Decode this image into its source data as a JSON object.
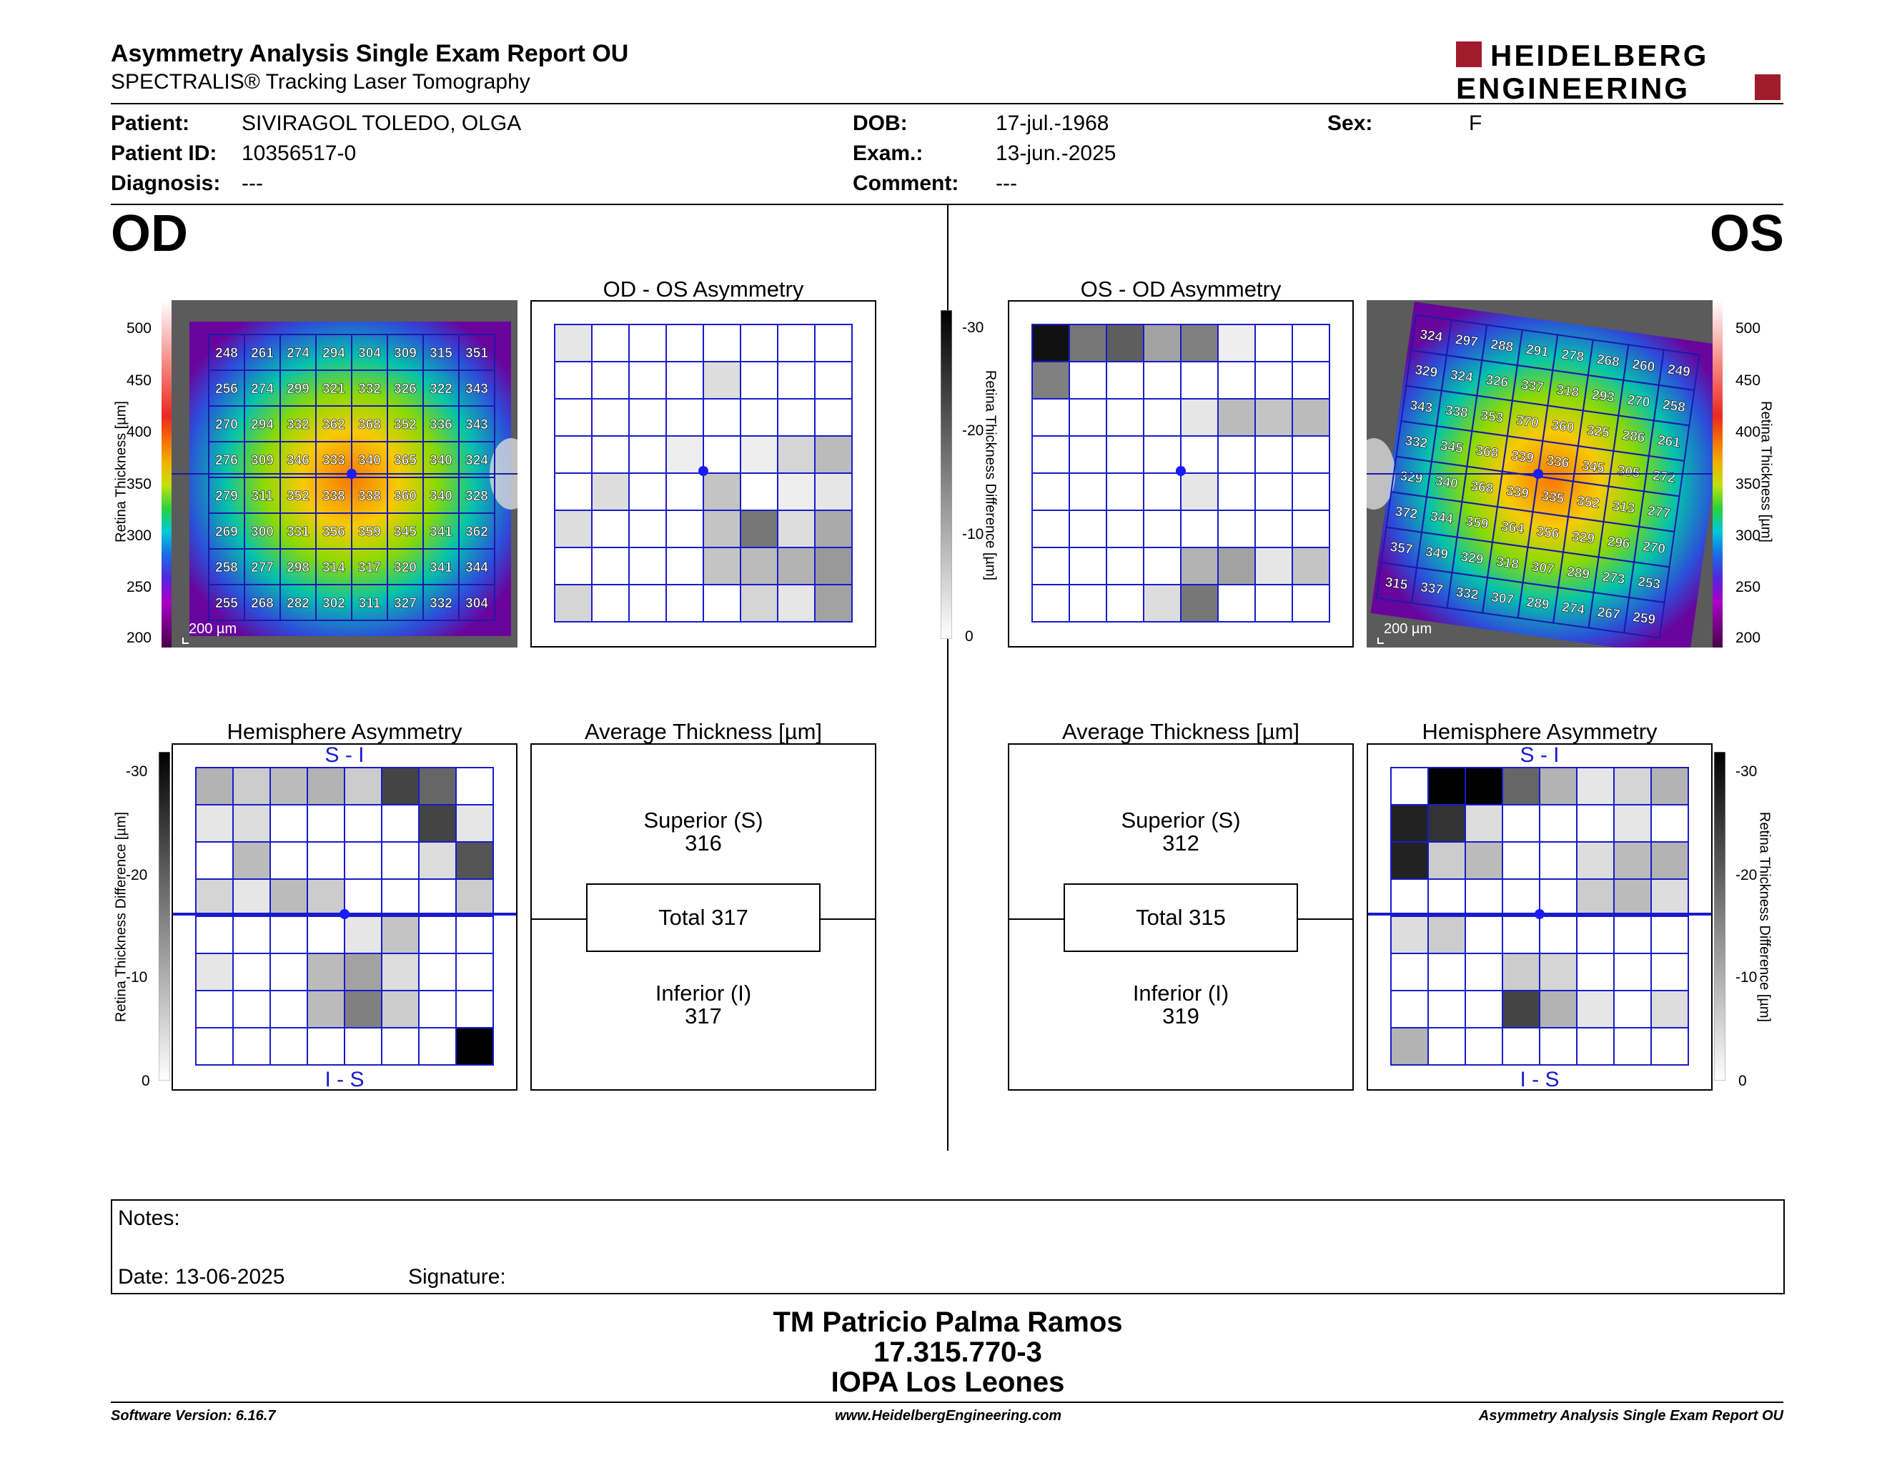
{
  "header": {
    "title": "Asymmetry Analysis Single Exam Report OU",
    "subtitle": "SPECTRALIS® Tracking Laser Tomography",
    "logo_line1": "HEIDELBERG",
    "logo_line2": "ENGINEERING"
  },
  "patient": {
    "patient_label": "Patient:",
    "patient_value": "SIVIRAGOL TOLEDO, OLGA",
    "id_label": "Patient ID:",
    "id_value": "10356517-0",
    "diagnosis_label": "Diagnosis:",
    "diagnosis_value": "---",
    "dob_label": "DOB:",
    "dob_value": "17-jul.-1968",
    "exam_label": "Exam.:",
    "exam_value": "13-jun.-2025",
    "comment_label": "Comment:",
    "comment_value": "---",
    "sex_label": "Sex:",
    "sex_value": "F"
  },
  "od": {
    "eye_label": "OD",
    "asym_title": "OD - OS Asymmetry",
    "hemi_title": "Hemisphere Asymmetry",
    "avg_title": "Average Thickness [µm]",
    "superior_label": "Superior (S)",
    "superior_value": "316",
    "total_text": "Total 317",
    "inferior_label": "Inferior (I)",
    "inferior_value": "317",
    "scale_label": "200 µm",
    "si_label": "S - I",
    "is_label": "I - S",
    "thickness_grid": [
      [
        248,
        261,
        274,
        294,
        304,
        309,
        315,
        351
      ],
      [
        256,
        274,
        299,
        321,
        332,
        326,
        322,
        343
      ],
      [
        270,
        294,
        332,
        362,
        368,
        352,
        336,
        343
      ],
      [
        276,
        309,
        346,
        333,
        340,
        365,
        340,
        324
      ],
      [
        279,
        311,
        352,
        338,
        338,
        360,
        340,
        328
      ],
      [
        269,
        300,
        331,
        356,
        359,
        345,
        341,
        362
      ],
      [
        258,
        277,
        298,
        314,
        317,
        320,
        341,
        344
      ],
      [
        255,
        268,
        282,
        302,
        311,
        327,
        332,
        304
      ]
    ],
    "asym_grid": [
      [
        3,
        0,
        0,
        0,
        0,
        0,
        0,
        0
      ],
      [
        0,
        0,
        0,
        0,
        4,
        0,
        0,
        0
      ],
      [
        0,
        0,
        0,
        0,
        0,
        0,
        0,
        0
      ],
      [
        0,
        0,
        0,
        2,
        0,
        2,
        5,
        8
      ],
      [
        0,
        4,
        0,
        0,
        7,
        0,
        2,
        3
      ],
      [
        4,
        0,
        0,
        0,
        7,
        16,
        4,
        10
      ],
      [
        0,
        0,
        0,
        0,
        7,
        8,
        9,
        12
      ],
      [
        5,
        0,
        0,
        0,
        0,
        5,
        3,
        11
      ]
    ],
    "hemi_grid": [
      [
        9,
        6,
        8,
        9,
        6,
        22,
        18,
        0
      ],
      [
        3,
        4,
        0,
        0,
        0,
        0,
        22,
        3
      ],
      [
        0,
        8,
        0,
        0,
        0,
        0,
        4,
        20
      ],
      [
        5,
        3,
        8,
        6,
        0,
        0,
        0,
        6
      ],
      [
        0,
        0,
        0,
        0,
        3,
        7,
        0,
        0
      ],
      [
        3,
        0,
        0,
        8,
        11,
        4,
        0,
        0
      ],
      [
        0,
        0,
        0,
        8,
        15,
        6,
        0,
        0
      ],
      [
        0,
        0,
        0,
        0,
        0,
        0,
        0,
        30
      ]
    ]
  },
  "os": {
    "eye_label": "OS",
    "asym_title": "OS - OD Asymmetry",
    "hemi_title": "Hemisphere Asymmetry",
    "avg_title": "Average Thickness [µm]",
    "superior_label": "Superior (S)",
    "superior_value": "312",
    "total_text": "Total 315",
    "inferior_label": "Inferior (I)",
    "inferior_value": "319",
    "scale_label": "200 µm",
    "si_label": "S - I",
    "is_label": "I - S",
    "thickness_grid": [
      [
        324,
        297,
        288,
        291,
        278,
        268,
        260,
        249
      ],
      [
        329,
        324,
        326,
        337,
        318,
        293,
        270,
        258
      ],
      [
        343,
        338,
        353,
        370,
        360,
        325,
        286,
        261
      ],
      [
        332,
        345,
        368,
        339,
        336,
        345,
        305,
        272
      ],
      [
        329,
        340,
        368,
        339,
        335,
        352,
        313,
        277
      ],
      [
        372,
        344,
        359,
        364,
        356,
        329,
        296,
        270
      ],
      [
        357,
        349,
        329,
        318,
        307,
        289,
        273,
        253
      ],
      [
        315,
        337,
        332,
        307,
        289,
        274,
        267,
        259
      ]
    ],
    "asym_grid": [
      [
        28,
        16,
        19,
        11,
        15,
        2,
        0,
        0
      ],
      [
        15,
        0,
        0,
        0,
        0,
        0,
        0,
        0
      ],
      [
        0,
        0,
        0,
        0,
        3,
        8,
        7,
        8
      ],
      [
        0,
        0,
        0,
        0,
        0,
        0,
        0,
        0
      ],
      [
        0,
        0,
        0,
        0,
        3,
        0,
        0,
        0
      ],
      [
        0,
        0,
        0,
        0,
        0,
        0,
        0,
        0
      ],
      [
        0,
        0,
        0,
        0,
        9,
        11,
        3,
        7
      ],
      [
        0,
        0,
        0,
        4,
        16,
        0,
        0,
        0
      ]
    ],
    "hemi_grid": [
      [
        0,
        30,
        30,
        18,
        9,
        3,
        5,
        9
      ],
      [
        26,
        24,
        4,
        0,
        0,
        0,
        3,
        0
      ],
      [
        26,
        6,
        8,
        0,
        0,
        4,
        8,
        9
      ],
      [
        0,
        0,
        0,
        0,
        0,
        6,
        8,
        4
      ],
      [
        4,
        6,
        0,
        0,
        0,
        0,
        0,
        0
      ],
      [
        0,
        0,
        0,
        6,
        5,
        0,
        0,
        0
      ],
      [
        0,
        0,
        0,
        22,
        9,
        3,
        0,
        4
      ],
      [
        9,
        0,
        0,
        0,
        0,
        0,
        0,
        0
      ]
    ]
  },
  "scales": {
    "thickness_ticks": [
      "500",
      "450",
      "400",
      "350",
      "300",
      "250",
      "200"
    ],
    "thickness_label": "Retina Thickness [µm]",
    "diff_ticks": [
      "-30",
      "-20",
      "-10",
      "0"
    ],
    "diff_label": "Retina Thickness Difference [µm]"
  },
  "notes": {
    "notes_label": "Notes:",
    "date_label": "Date: 13-06-2025",
    "signature_label": "Signature:"
  },
  "signer": {
    "name": "TM Patricio Palma Ramos",
    "rut": "17.315.770-3",
    "institution": "IOPA Los Leones"
  },
  "footer": {
    "version": "Software Version: 6.16.7",
    "url": "www.HeidelbergEngineering.com",
    "report": "Asymmetry Analysis Single Exam Report OU"
  }
}
